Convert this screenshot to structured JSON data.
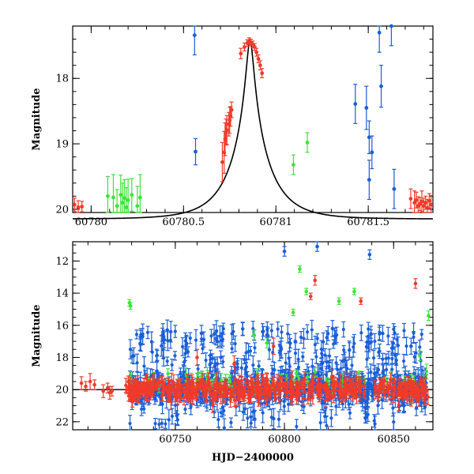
{
  "figure": {
    "colors": {
      "model": "#000000",
      "red": "#f03a2a",
      "blue": "#1a5fd6",
      "green": "#3ee23a",
      "frame": "#000000",
      "background": "#ffffff"
    }
  },
  "chart_data": [
    {
      "type": "scatter",
      "panel": "top",
      "title": "",
      "xlabel": "",
      "ylabel": "Magnitude",
      "xlim": [
        60779.9,
        60781.85
      ],
      "ylim": [
        20.05,
        17.2
      ],
      "y_inverted": true,
      "x_ticks": [
        60780,
        60780.5,
        60781,
        60781.5
      ],
      "x_tick_labels": [
        "60780",
        "60780.5",
        "60781",
        "60781.5"
      ],
      "y_ticks": [
        18,
        19,
        20
      ],
      "y_tick_labels": [
        "18",
        "19",
        "20"
      ],
      "grid": false,
      "legend": "none",
      "model_curve": {
        "name": "",
        "color": "#000000",
        "peak_x": 60780.86,
        "peak_mag": 17.42,
        "base_mag": 20.15,
        "u0": 0.09,
        "tE": 0.2
      },
      "series": [
        {
          "color": "#f03a2a",
          "points": [
            [
              60779.91,
              19.93,
              0.1
            ],
            [
              60779.93,
              19.97,
              0.1
            ],
            [
              60779.95,
              19.96,
              0.08
            ],
            [
              60780.71,
              19.28,
              0.3
            ],
            [
              60780.72,
              19.13,
              0.32
            ],
            [
              60780.725,
              18.93,
              0.25
            ],
            [
              60780.73,
              18.82,
              0.2
            ],
            [
              60780.735,
              18.79,
              0.22
            ],
            [
              60780.745,
              18.7,
              0.18
            ],
            [
              60780.75,
              18.64,
              0.2
            ],
            [
              60780.755,
              18.58,
              0.15
            ],
            [
              60780.76,
              18.48,
              0.12
            ],
            [
              60780.81,
              17.62,
              0.08
            ],
            [
              60780.83,
              17.52,
              0.06
            ],
            [
              60780.845,
              17.46,
              0.05
            ],
            [
              60780.855,
              17.43,
              0.05
            ],
            [
              60780.865,
              17.45,
              0.05
            ],
            [
              60780.875,
              17.48,
              0.05
            ],
            [
              60780.885,
              17.52,
              0.05
            ],
            [
              60780.895,
              17.6,
              0.06
            ],
            [
              60780.905,
              17.7,
              0.06
            ],
            [
              60780.915,
              17.8,
              0.07
            ],
            [
              60780.925,
              17.92,
              0.07
            ],
            [
              60781.73,
              19.84,
              0.15
            ],
            [
              60781.75,
              19.9,
              0.18
            ],
            [
              60781.76,
              19.86,
              0.12
            ],
            [
              60781.77,
              19.95,
              0.14
            ],
            [
              60781.78,
              19.92,
              0.1
            ],
            [
              60781.79,
              19.88,
              0.16
            ],
            [
              60781.8,
              19.95,
              0.12
            ],
            [
              60781.81,
              19.9,
              0.1
            ],
            [
              60781.82,
              19.98,
              0.13
            ],
            [
              60781.83,
              19.87,
              0.11
            ],
            [
              60781.84,
              19.93,
              0.14
            ]
          ]
        },
        {
          "color": "#1a5fd6",
          "points": [
            [
              60780.56,
              17.34,
              0.3
            ],
            [
              60780.565,
              19.12,
              0.2
            ],
            [
              60781.43,
              18.39,
              0.3
            ],
            [
              60781.49,
              18.45,
              0.33
            ],
            [
              60781.505,
              18.9,
              0.25
            ],
            [
              60781.52,
              19.13,
              0.25
            ],
            [
              60781.505,
              19.55,
              0.3
            ],
            [
              60781.56,
              17.3,
              0.3
            ],
            [
              60781.57,
              18.12,
              0.32
            ],
            [
              60781.625,
              17.2,
              0.3
            ],
            [
              60781.64,
              19.69,
              0.3
            ]
          ]
        },
        {
          "color": "#3ee23a",
          "points": [
            [
              60780.09,
              19.8,
              0.3
            ],
            [
              60780.12,
              19.82,
              0.35
            ],
            [
              60780.14,
              19.95,
              0.25
            ],
            [
              60780.16,
              19.78,
              0.3
            ],
            [
              60780.17,
              19.9,
              0.3
            ],
            [
              60780.18,
              19.83,
              0.28
            ],
            [
              60780.19,
              19.97,
              0.3
            ],
            [
              60780.2,
              19.86,
              0.32
            ],
            [
              60780.22,
              19.78,
              0.25
            ],
            [
              60780.25,
              19.95,
              0.3
            ],
            [
              60780.265,
              19.82,
              0.35
            ],
            [
              60781.095,
              19.32,
              0.15
            ],
            [
              60781.17,
              18.98,
              0.15
            ]
          ]
        }
      ]
    },
    {
      "type": "scatter",
      "panel": "bottom",
      "title": "",
      "xlabel": "HJD−2400000",
      "ylabel": "Magnitude",
      "xlim": [
        60703,
        60868
      ],
      "ylim": [
        22.5,
        10.8
      ],
      "y_inverted": true,
      "x_ticks": [
        60750,
        60800,
        60850
      ],
      "x_tick_labels": [
        "60750",
        "60800",
        "60850"
      ],
      "y_ticks": [
        12,
        14,
        16,
        18,
        20,
        22
      ],
      "y_tick_labels": [
        "12",
        "14",
        "16",
        "18",
        "20",
        "22"
      ],
      "grid": false,
      "legend": "none",
      "baseline": {
        "name": "",
        "color": "#000000",
        "mag": 20.0,
        "x_start": 60703,
        "x_end": 60868
      },
      "series": [
        {
          "color": "#f03a2a",
          "points": [
            [
              60707,
              19.6,
              0.4
            ],
            [
              60709,
              19.8,
              0.3
            ],
            [
              60711,
              19.5,
              0.5
            ],
            [
              60713,
              19.7,
              0.3
            ],
            [
              60717,
              20.1,
              0.4
            ],
            [
              60719,
              19.9,
              0.3
            ],
            [
              60720,
              20.2,
              0.4
            ],
            [
              60721,
              20.1,
              0.3
            ],
            [
              60812,
              14.2,
              0.2
            ],
            [
              60814,
              13.2,
              0.3
            ],
            [
              60835,
              14.5,
              0.2
            ],
            [
              60860,
              13.4,
              0.3
            ],
            [
              60760,
              18.0,
              0.5
            ],
            [
              60777,
              18.4,
              0.5
            ],
            [
              60795,
              17.3,
              0.5
            ]
          ],
          "cloud": {
            "description_only_for_generation": false,
            "x_range": [
              60727,
              60866
            ],
            "center_mag": 20.0,
            "spread": 0.45,
            "count": 520
          }
        },
        {
          "color": "#1a5fd6",
          "points": [
            [
              60800,
              11.4,
              0.3
            ],
            [
              60815,
              11.1,
              0.3
            ],
            [
              60839,
              11.6,
              0.3
            ],
            [
              60731,
              17.9,
              0.5
            ],
            [
              60735,
              16.7,
              0.5
            ],
            [
              60745,
              16.9,
              0.5
            ],
            [
              60755,
              17.2,
              0.5
            ],
            [
              60762,
              16.5,
              0.5
            ],
            [
              60790,
              16.4,
              0.5
            ],
            [
              60805,
              17.0,
              0.5
            ],
            [
              60822,
              16.2,
              0.5
            ],
            [
              60845,
              16.5,
              0.5
            ],
            [
              60858,
              17.3,
              0.5
            ]
          ],
          "cloud": {
            "x_range": [
              60729,
              60865
            ],
            "center_mag": 19.6,
            "spread": 1.8,
            "count": 780
          }
        },
        {
          "color": "#3ee23a",
          "points": [
            [
              60729,
              14.6,
              0.2
            ],
            [
              60729.5,
              14.8,
              0.2
            ],
            [
              60786,
              16.6,
              0.3
            ],
            [
              60792,
              17.1,
              0.3
            ],
            [
              60804,
              15.2,
              0.2
            ],
            [
              60807,
              12.5,
              0.2
            ],
            [
              60810,
              13.9,
              0.2
            ],
            [
              60825,
              14.5,
              0.2
            ],
            [
              60832,
              13.9,
              0.2
            ],
            [
              60862,
              17.9,
              0.3
            ],
            [
              60866,
              15.4,
              0.3
            ]
          ],
          "cloud": {
            "x_range": [
              60729,
              60866
            ],
            "center_mag": 19.5,
            "spread": 0.4,
            "count": 70
          }
        }
      ]
    }
  ]
}
